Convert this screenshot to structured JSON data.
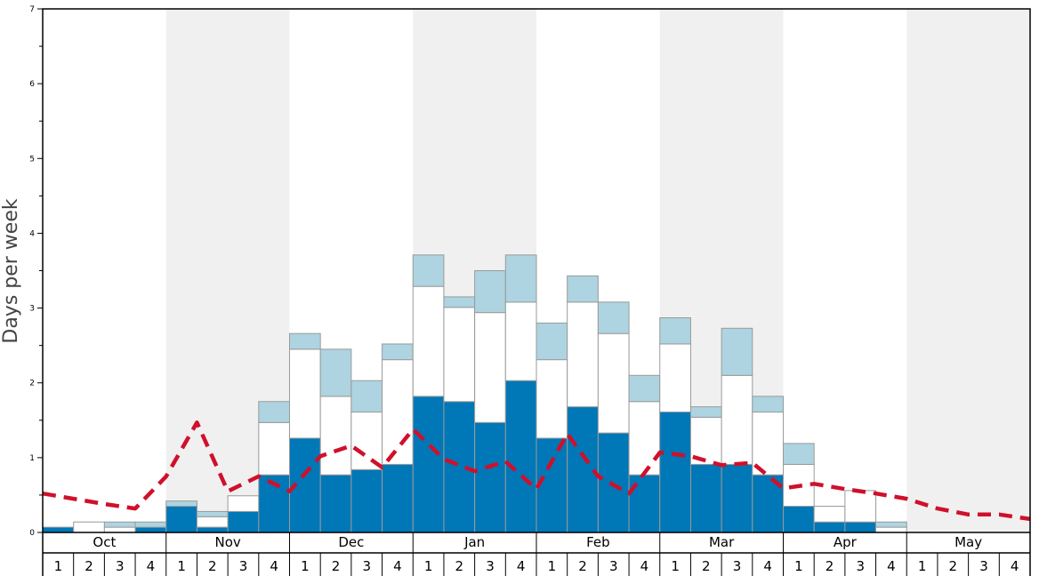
{
  "chart_data": {
    "type": "bar",
    "ylabel": "Days per week",
    "ylim": [
      0,
      7
    ],
    "y_ticks": [
      "0",
      "1",
      "2",
      "3",
      "4",
      "5",
      "6",
      "7"
    ],
    "months": [
      "Oct",
      "Nov",
      "Dec",
      "Jan",
      "Feb",
      "Mar",
      "Apr",
      "May"
    ],
    "week_labels": [
      "1",
      "2",
      "3",
      "4"
    ],
    "colors": {
      "series_dark": "#0077b6",
      "series_white": "#ffffff",
      "series_light": "#add4e0",
      "trend_line": "#d0102b",
      "band_shade": "#f0f0f0"
    },
    "series": [
      {
        "values": [
          0.07,
          0.0,
          0.0,
          0.07,
          0.35,
          0.07,
          0.28,
          0.77,
          1.26,
          0.77,
          0.84,
          0.91,
          1.82,
          1.75,
          1.47,
          2.03,
          1.26,
          1.68,
          1.33,
          0.77,
          1.61,
          0.91,
          0.91,
          0.77,
          0.35,
          0.14,
          0.14,
          0.0,
          0.0,
          0.0,
          0.0,
          0.0
        ]
      },
      {
        "values": [
          0.0,
          0.14,
          0.07,
          0.0,
          0.0,
          0.14,
          0.21,
          0.7,
          1.19,
          1.05,
          0.77,
          1.4,
          1.47,
          1.26,
          1.47,
          1.05,
          1.05,
          1.4,
          1.33,
          0.98,
          0.91,
          0.63,
          1.19,
          0.84,
          0.56,
          0.21,
          0.42,
          0.07,
          0.0,
          0.0,
          0.0,
          0.0
        ]
      },
      {
        "values": [
          0.0,
          0.0,
          0.07,
          0.07,
          0.07,
          0.07,
          0.0,
          0.28,
          0.21,
          0.63,
          0.42,
          0.21,
          0.42,
          0.14,
          0.56,
          0.63,
          0.49,
          0.35,
          0.42,
          0.35,
          0.35,
          0.14,
          0.63,
          0.21,
          0.28,
          0.0,
          0.0,
          0.07,
          0.0,
          0.0,
          0.0,
          0.0
        ]
      }
    ],
    "trend_line": {
      "style": "dashed",
      "values": [
        0.52,
        0.45,
        0.38,
        0.32,
        0.75,
        1.47,
        0.55,
        0.75,
        0.55,
        1.02,
        1.16,
        0.87,
        1.38,
        0.98,
        0.82,
        0.95,
        0.58,
        1.32,
        0.75,
        0.52,
        1.07,
        1.02,
        0.9,
        0.93,
        0.59,
        0.65,
        0.58,
        0.52,
        0.45,
        0.32,
        0.24,
        0.24,
        0.18
      ]
    },
    "shaded_months": [
      "Nov",
      "Jan",
      "Mar",
      "May"
    ],
    "grid": false,
    "legend": "none"
  }
}
